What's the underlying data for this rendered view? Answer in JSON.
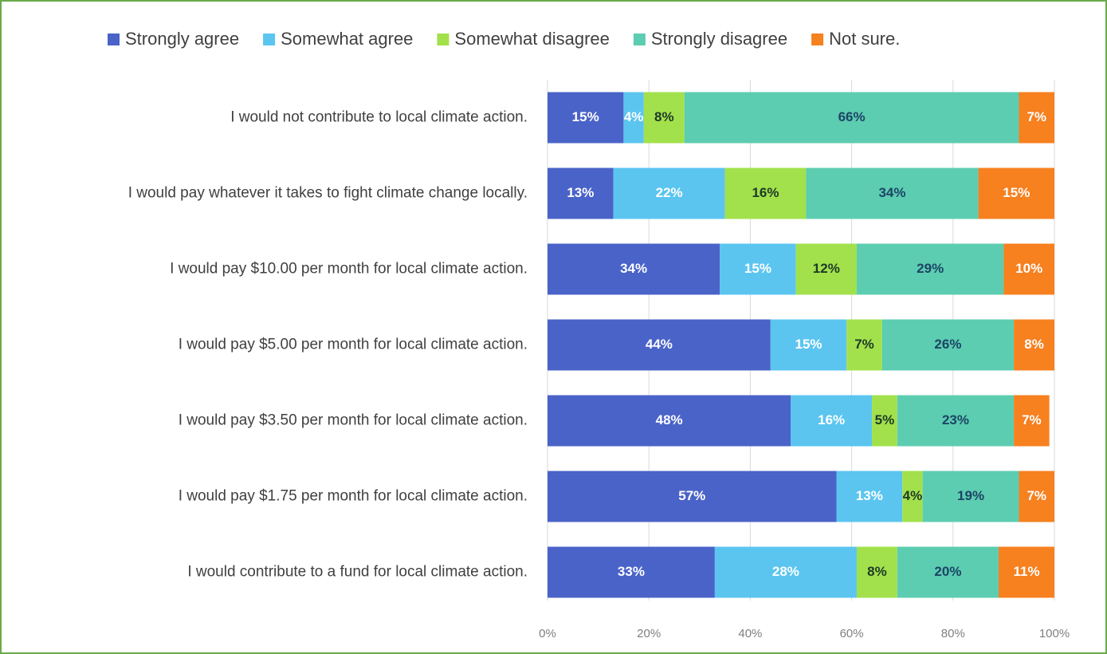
{
  "chart_data": {
    "type": "stacked-bar-horizontal",
    "categories": [
      "I would not contribute to local climate action.",
      "I would pay whatever it takes to fight climate change locally.",
      "I would pay $10.00 per month for local climate action.",
      "I would pay $5.00 per month for local climate action.",
      "I would pay $3.50 per month for local climate action.",
      "I would pay $1.75 per month for local climate action.",
      "I would contribute to a fund for local climate action."
    ],
    "series": [
      {
        "name": "Strongly agree",
        "color": "#4a63c8",
        "label_color": "#ffffff",
        "values": [
          15,
          13,
          34,
          44,
          48,
          57,
          33
        ],
        "value_labels": [
          "15%",
          "13%",
          "34%",
          "44%",
          "48%",
          "57%",
          "33%"
        ]
      },
      {
        "name": "Somewhat agree",
        "color": "#5bc5f0",
        "label_color": "#ffffff",
        "values": [
          4,
          22,
          15,
          15,
          16,
          13,
          28
        ],
        "value_labels": [
          "4%",
          "22%",
          "15%",
          "15%",
          "16%",
          "13%",
          "28%"
        ]
      },
      {
        "name": "Somewhat disagree",
        "color": "#a2e14b",
        "label_color": "#1e3a28",
        "values": [
          8,
          16,
          12,
          7,
          5,
          4,
          8
        ],
        "value_labels": [
          "8%",
          "16%",
          "12%",
          "7%",
          "5%",
          "4%",
          "8%"
        ]
      },
      {
        "name": "Strongly disagree",
        "color": "#5ccdb0",
        "label_color": "#1c4466",
        "values": [
          66,
          34,
          29,
          26,
          23,
          19,
          20
        ],
        "value_labels": [
          "66%",
          "34%",
          "29%",
          "26%",
          "23%",
          "19%",
          "20%"
        ]
      },
      {
        "name": "Not sure.",
        "color": "#f7801f",
        "label_color": "#ffffff",
        "values": [
          7,
          15,
          10,
          8,
          7,
          7,
          11
        ],
        "value_labels": [
          "7%",
          "15%",
          "10%",
          "8%",
          "7%",
          "7%",
          "11%"
        ]
      }
    ],
    "xlim": [
      0,
      100
    ],
    "xticks": [
      {
        "value": 0,
        "label": "0%"
      },
      {
        "value": 20,
        "label": "20%"
      },
      {
        "value": 40,
        "label": "40%"
      },
      {
        "value": 60,
        "label": "60%"
      },
      {
        "value": 80,
        "label": "80%"
      },
      {
        "value": 100,
        "label": "100%"
      }
    ],
    "grid": true,
    "legend": "top"
  }
}
